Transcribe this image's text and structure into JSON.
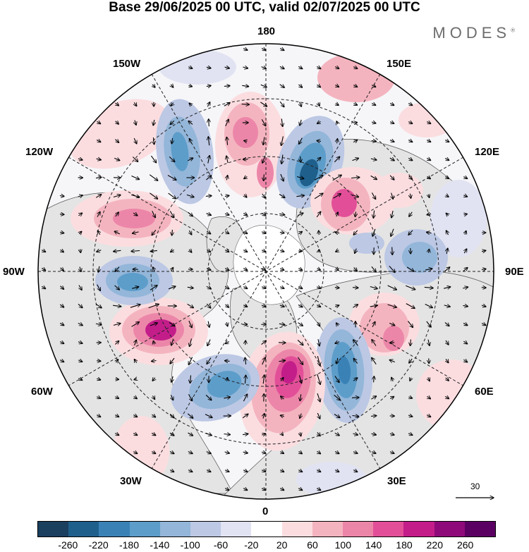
{
  "title": "Base 29/06/2025 00 UTC, valid 02/07/2025 00 UTC",
  "brand": "MODES",
  "brand_mark": "®",
  "longitude_labels": {
    "top": "180",
    "bottom": "0",
    "left": "90W",
    "right": "90E",
    "upper_left_1": "150W",
    "upper_left_2": "120W",
    "lower_left_1": "60W",
    "lower_left_2": "30W",
    "upper_right_1": "150E",
    "upper_right_2": "120E",
    "lower_right_1": "60E",
    "lower_right_2": "30E"
  },
  "vector_scale": "30",
  "colorbar": {
    "ticks": [
      "-260",
      "-220",
      "-180",
      "-140",
      "-100",
      "-60",
      "-20",
      "20",
      "60",
      "100",
      "140",
      "180",
      "220",
      "260"
    ],
    "colors": [
      "#1a3f5f",
      "#1f5f8c",
      "#3a82b6",
      "#5d9dca",
      "#93b6d9",
      "#bcc8e4",
      "#e1e3f2",
      "#ffffff",
      "#fbdde0",
      "#f4b4bf",
      "#ec86a9",
      "#e24f98",
      "#c31d8a",
      "#8e0a7a",
      "#5b0063"
    ]
  },
  "colors": {
    "land": "#e9e9e9",
    "graticule": "#222222"
  }
}
